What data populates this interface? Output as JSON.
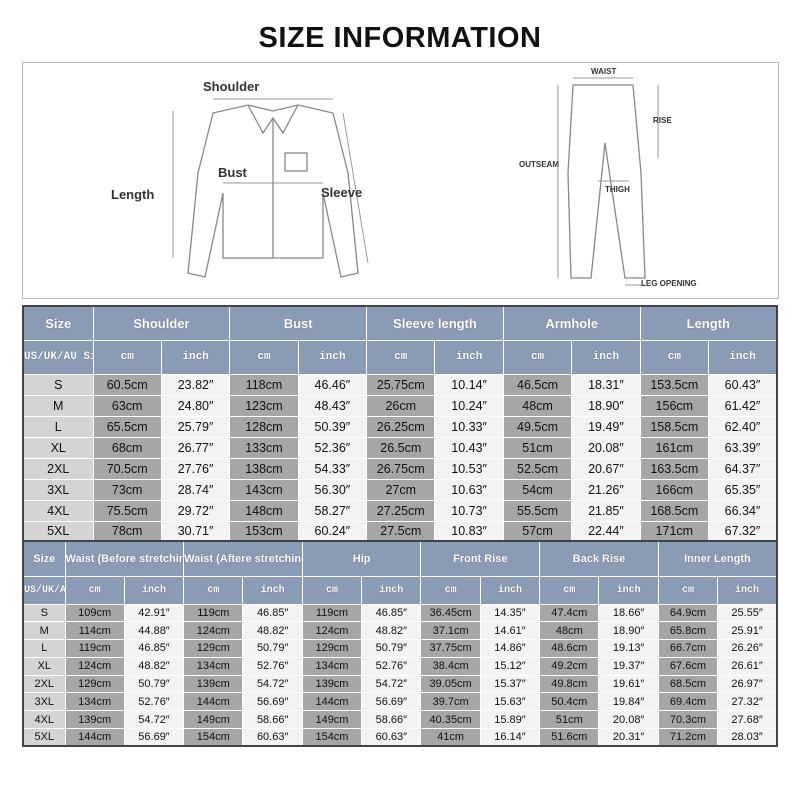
{
  "title": "SIZE INFORMATION",
  "diagram": {
    "shirt_labels": {
      "shoulder": "Shoulder",
      "bust": "Bust",
      "length": "Length",
      "sleeve": "Sleeve"
    },
    "pants_labels": {
      "waist": "WAIST",
      "rise": "RISE",
      "outseam": "OUTSEAM",
      "thigh": "THIGH",
      "leg_opening": "LEG OPENING"
    }
  },
  "colors": {
    "header": "#8a9bb5",
    "cm_cell": "#a8a5a5",
    "inch_cell": "#f3f3f3",
    "size_cell": "#d4d4d4"
  },
  "top_table": {
    "size_header": "Size",
    "size_sub": "US/UK/AU Size",
    "unit_cm": "cm",
    "unit_inch": "inch",
    "groups": [
      "Shoulder",
      "Bust",
      "Sleeve length",
      "Armhole",
      "Length"
    ],
    "rows": [
      [
        "S",
        "60.5cm",
        "23.82″",
        "118cm",
        "46.46″",
        "25.75cm",
        "10.14″",
        "46.5cm",
        "18.31″",
        "153.5cm",
        "60.43″"
      ],
      [
        "M",
        "63cm",
        "24.80″",
        "123cm",
        "48.43″",
        "26cm",
        "10.24″",
        "48cm",
        "18.90″",
        "156cm",
        "61.42″"
      ],
      [
        "L",
        "65.5cm",
        "25.79″",
        "128cm",
        "50.39″",
        "26.25cm",
        "10.33″",
        "49.5cm",
        "19.49″",
        "158.5cm",
        "62.40″"
      ],
      [
        "XL",
        "68cm",
        "26.77″",
        "133cm",
        "52.36″",
        "26.5cm",
        "10.43″",
        "51cm",
        "20.08″",
        "161cm",
        "63.39″"
      ],
      [
        "2XL",
        "70.5cm",
        "27.76″",
        "138cm",
        "54.33″",
        "26.75cm",
        "10.53″",
        "52.5cm",
        "20.67″",
        "163.5cm",
        "64.37″"
      ],
      [
        "3XL",
        "73cm",
        "28.74″",
        "143cm",
        "56.30″",
        "27cm",
        "10.63″",
        "54cm",
        "21.26″",
        "166cm",
        "65.35″"
      ],
      [
        "4XL",
        "75.5cm",
        "29.72″",
        "148cm",
        "58.27″",
        "27.25cm",
        "10.73″",
        "55.5cm",
        "21.85″",
        "168.5cm",
        "66.34″"
      ],
      [
        "5XL",
        "78cm",
        "30.71″",
        "153cm",
        "60.24″",
        "27.5cm",
        "10.83″",
        "57cm",
        "22.44″",
        "171cm",
        "67.32″"
      ]
    ]
  },
  "bottom_table": {
    "size_header": "Size",
    "size_sub": "US/UK/AU Size",
    "unit_cm": "cm",
    "unit_inch": "inch",
    "groups": [
      "Waist (Before stretching)",
      "Waist (Aftere stretching)",
      "Hip",
      "Front Rise",
      "Back Rise",
      "Inner Length"
    ],
    "rows": [
      [
        "S",
        "109cm",
        "42.91″",
        "119cm",
        "46.85″",
        "119cm",
        "46.85″",
        "36.45cm",
        "14.35″",
        "47.4cm",
        "18.66″",
        "64.9cm",
        "25.55″"
      ],
      [
        "M",
        "114cm",
        "44.88″",
        "124cm",
        "48.82″",
        "124cm",
        "48.82″",
        "37.1cm",
        "14.61″",
        "48cm",
        "18.90″",
        "65.8cm",
        "25.91″"
      ],
      [
        "L",
        "119cm",
        "46.85″",
        "129cm",
        "50.79″",
        "129cm",
        "50.79″",
        "37.75cm",
        "14.86″",
        "48.6cm",
        "19.13″",
        "66.7cm",
        "26.26″"
      ],
      [
        "XL",
        "124cm",
        "48.82″",
        "134cm",
        "52.76″",
        "134cm",
        "52.76″",
        "38.4cm",
        "15.12″",
        "49.2cm",
        "19.37″",
        "67.6cm",
        "26.61″"
      ],
      [
        "2XL",
        "129cm",
        "50.79″",
        "139cm",
        "54.72″",
        "139cm",
        "54.72″",
        "39.05cm",
        "15.37″",
        "49.8cm",
        "19.61″",
        "68.5cm",
        "26.97″"
      ],
      [
        "3XL",
        "134cm",
        "52.76″",
        "144cm",
        "56.69″",
        "144cm",
        "56.69″",
        "39.7cm",
        "15.63″",
        "50.4cm",
        "19.84″",
        "69.4cm",
        "27.32″"
      ],
      [
        "4XL",
        "139cm",
        "54.72″",
        "149cm",
        "58.66″",
        "149cm",
        "58.66″",
        "40.35cm",
        "15.89″",
        "51cm",
        "20.08″",
        "70.3cm",
        "27.68″"
      ],
      [
        "5XL",
        "144cm",
        "56.69″",
        "154cm",
        "60.63″",
        "154cm",
        "60.63″",
        "41cm",
        "16.14″",
        "51.6cm",
        "20.31″",
        "71.2cm",
        "28.03″"
      ]
    ]
  }
}
